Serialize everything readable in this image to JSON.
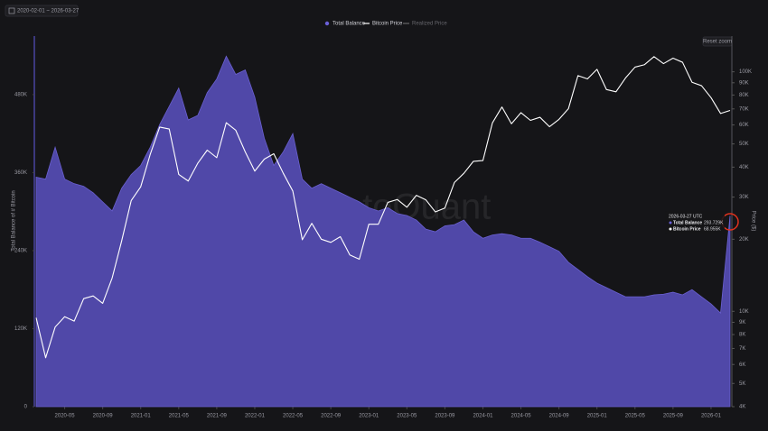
{
  "chart_data": {
    "type": "area-line",
    "date_range": "2020-02-01 ~ 2026-03-27",
    "reset_button": "Reset zoom",
    "watermark": "CryptoQuant",
    "y_label": "Total Balance of # Bitcoin",
    "y2_label": "Price ($)",
    "x": [
      "2020-02",
      "2020-03",
      "2020-04",
      "2020-05",
      "2020-06",
      "2020-07",
      "2020-08",
      "2020-09",
      "2020-10",
      "2020-11",
      "2020-12",
      "2021-01",
      "2021-02",
      "2021-03",
      "2021-04",
      "2021-05",
      "2021-06",
      "2021-07",
      "2021-08",
      "2021-09",
      "2021-10",
      "2021-11",
      "2021-12",
      "2022-01",
      "2022-02",
      "2022-03",
      "2022-04",
      "2022-05",
      "2022-06",
      "2022-07",
      "2022-08",
      "2022-09",
      "2022-10",
      "2022-11",
      "2022-12",
      "2023-01",
      "2023-02",
      "2023-03",
      "2023-04",
      "2023-05",
      "2023-06",
      "2023-07",
      "2023-08",
      "2023-09",
      "2023-10",
      "2023-11",
      "2023-12",
      "2024-01",
      "2024-02",
      "2024-03",
      "2024-04",
      "2024-05",
      "2024-06",
      "2024-07",
      "2024-08",
      "2024-09",
      "2024-10",
      "2024-11",
      "2024-12",
      "2025-01",
      "2025-02",
      "2025-03",
      "2025-04",
      "2025-05",
      "2025-06",
      "2025-07",
      "2025-08",
      "2025-09",
      "2025-10",
      "2025-11",
      "2025-12",
      "2026-01",
      "2026-02",
      "2026-03"
    ],
    "xlim": [
      "2020-02",
      "2026-03"
    ],
    "xticks": [
      "2020-05",
      "2020-09",
      "2021-01",
      "2021-05",
      "2021-09",
      "2022-01",
      "2022-05",
      "2022-09",
      "2023-01",
      "2023-05",
      "2023-09",
      "2024-01",
      "2024-05",
      "2024-09",
      "2025-01",
      "2025-05",
      "2025-09",
      "2026-01"
    ],
    "series": [
      {
        "name": "Total Balance",
        "type": "area",
        "color": "#5048a8",
        "values": [
          353000,
          350000,
          399000,
          350000,
          343000,
          339000,
          329000,
          315000,
          301000,
          336000,
          357000,
          371000,
          399000,
          434000,
          462000,
          490000,
          441000,
          448000,
          483000,
          504000,
          539000,
          511000,
          518000,
          476000,
          413000,
          371000,
          392000,
          420000,
          350000,
          336000,
          343000,
          336000,
          329000,
          322000,
          315000,
          306000,
          301000,
          306000,
          297000,
          294000,
          287000,
          273000,
          269000,
          278000,
          280000,
          287000,
          269000,
          259000,
          264000,
          266000,
          264000,
          259000,
          259000,
          253000,
          246000,
          239000,
          222000,
          211000,
          200000,
          190000,
          183000,
          176000,
          169000,
          169000,
          169000,
          172000,
          173000,
          176000,
          172000,
          180000,
          169000,
          158000,
          144000,
          293729
        ]
      },
      {
        "name": "Bitcoin Price",
        "type": "line",
        "axis": "y2",
        "color": "#ffffff",
        "values": [
          9400,
          6400,
          8600,
          9500,
          9100,
          11300,
          11600,
          10800,
          13800,
          19700,
          29000,
          33100,
          45200,
          58800,
          57700,
          37300,
          35000,
          41500,
          47100,
          43800,
          61300,
          57000,
          46300,
          38500,
          43200,
          45500,
          37700,
          31800,
          19900,
          23300,
          20000,
          19400,
          20500,
          17200,
          16500,
          23100,
          23100,
          28500,
          29300,
          27200,
          30500,
          29200,
          26000,
          27000,
          34500,
          37700,
          42300,
          42600,
          61200,
          71300,
          60700,
          67500,
          62700,
          64600,
          59000,
          63300,
          70200,
          96400,
          93400,
          102400,
          84300,
          82500,
          94200,
          104600,
          107100,
          115700,
          108200,
          114000,
          109600,
          90400,
          87500,
          78000,
          67000,
          68955
        ]
      }
    ],
    "inactive_legend": [
      {
        "name": "Realized Price",
        "color": "#777777"
      }
    ],
    "ylim": [
      0,
      570000
    ],
    "yticks": [
      0,
      {
        "value": 120000,
        "label": "120K"
      },
      {
        "value": 240000,
        "label": "240K"
      },
      {
        "value": 360000,
        "label": "360K"
      },
      {
        "value": 480000,
        "label": "480K"
      }
    ],
    "y2lim": [
      4000,
      141000
    ],
    "y2_log": true,
    "y2ticks": [
      {
        "value": 4000,
        "label": "4K"
      },
      {
        "value": 5000,
        "label": "5K"
      },
      {
        "value": 6000,
        "label": "6K"
      },
      {
        "value": 7000,
        "label": "7K"
      },
      {
        "value": 8000,
        "label": "8K"
      },
      {
        "value": 9000,
        "label": "9K"
      },
      {
        "value": 10000,
        "label": "10K"
      },
      {
        "value": 20000,
        "label": "20K"
      },
      {
        "value": 30000,
        "label": "30K"
      },
      {
        "value": 40000,
        "label": "40K"
      },
      {
        "value": 50000,
        "label": "50K"
      },
      {
        "value": 60000,
        "label": "60K"
      },
      {
        "value": 70000,
        "label": "70K"
      },
      {
        "value": 80000,
        "label": "80K"
      },
      {
        "value": 90000,
        "label": "90K"
      },
      {
        "value": 100000,
        "label": "100K"
      }
    ],
    "grid": false,
    "tooltip": {
      "date": "2026-03-27 UTC",
      "items": [
        {
          "name": "Total Balance",
          "value": 293729,
          "label": "293.729K"
        },
        {
          "name": "Bitcoin Price",
          "value": 68955,
          "label": "68.955K"
        }
      ]
    }
  }
}
